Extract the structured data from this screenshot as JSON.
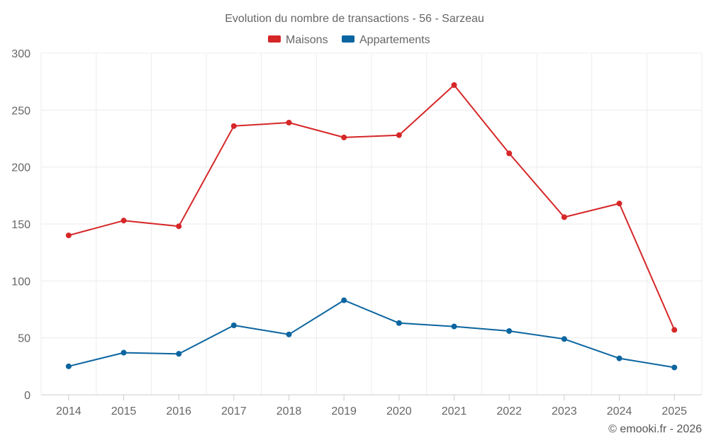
{
  "chart_data": {
    "type": "line",
    "title": "Evolution du nombre de transactions - 56 - Sarzeau",
    "categories": [
      "2014",
      "2015",
      "2016",
      "2017",
      "2018",
      "2019",
      "2020",
      "2021",
      "2022",
      "2023",
      "2024",
      "2025"
    ],
    "series": [
      {
        "name": "Maisons",
        "color": "#d62728",
        "values": [
          140,
          153,
          148,
          236,
          239,
          226,
          228,
          272,
          212,
          156,
          168,
          57
        ]
      },
      {
        "name": "Appartements",
        "color": "#0b65a0",
        "values": [
          25,
          37,
          36,
          61,
          53,
          83,
          63,
          60,
          56,
          49,
          32,
          24
        ]
      }
    ],
    "ylim": [
      0,
      300
    ],
    "yticks": [
      0,
      50,
      100,
      150,
      200,
      250,
      300
    ],
    "xlabel": "",
    "ylabel": "",
    "grid": true,
    "legend": "top-center"
  },
  "credit": "© emooki.fr - 2026"
}
